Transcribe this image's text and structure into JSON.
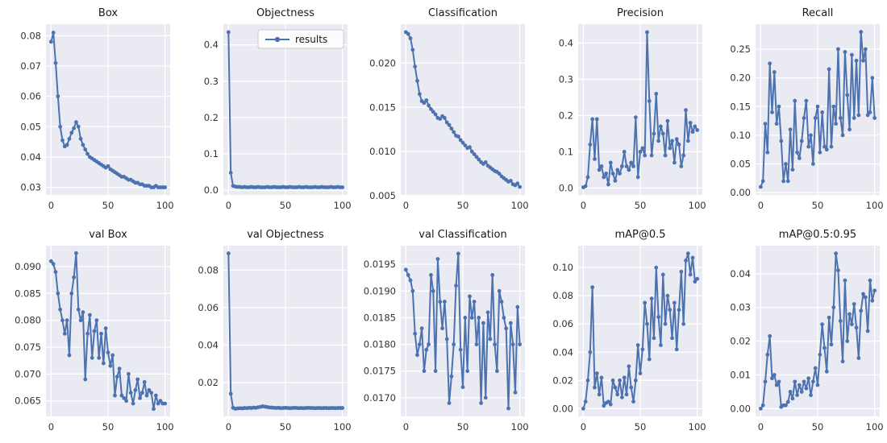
{
  "figure": {
    "name": "training-results-figure",
    "theme": {
      "figure_bg": "#ffffff",
      "panel_bg": "#eaeaf2",
      "grid_color": "#ffffff",
      "line_color": "#4c72b0",
      "text_color": "#333333",
      "legend_border": "#cccccc"
    }
  },
  "epochs": [
    0,
    2,
    4,
    6,
    8,
    10,
    12,
    14,
    16,
    18,
    20,
    22,
    24,
    26,
    28,
    30,
    32,
    34,
    36,
    38,
    40,
    42,
    44,
    46,
    48,
    50,
    52,
    54,
    56,
    58,
    60,
    62,
    64,
    66,
    68,
    70,
    72,
    74,
    76,
    78,
    80,
    82,
    84,
    86,
    88,
    90,
    92,
    94,
    96,
    98,
    100
  ],
  "chart_data": [
    {
      "id": "box",
      "type": "line",
      "title": "Box",
      "legend": null,
      "xlim": [
        -4.5,
        104.5
      ],
      "ylim": [
        0.0275,
        0.0838
      ],
      "xtick_vals": [
        0,
        50,
        100
      ],
      "xtick_labels": [
        "0",
        "50",
        "100"
      ],
      "ytick_vals": [
        0.03,
        0.04,
        0.05,
        0.06,
        0.07,
        0.08
      ],
      "ytick_labels": [
        "0.03",
        "0.04",
        "0.05",
        "0.06",
        "0.07",
        "0.08"
      ],
      "values": [
        0.078,
        0.081,
        0.071,
        0.06,
        0.05,
        0.0455,
        0.0435,
        0.044,
        0.046,
        0.048,
        0.0495,
        0.0515,
        0.05,
        0.046,
        0.044,
        0.0425,
        0.041,
        0.04,
        0.0395,
        0.039,
        0.0385,
        0.038,
        0.0375,
        0.037,
        0.0365,
        0.037,
        0.036,
        0.0355,
        0.035,
        0.0345,
        0.034,
        0.0335,
        0.0335,
        0.033,
        0.0325,
        0.0325,
        0.032,
        0.0315,
        0.0315,
        0.031,
        0.031,
        0.0305,
        0.0305,
        0.0305,
        0.03,
        0.03,
        0.0305,
        0.03,
        0.03,
        0.03,
        0.03
      ]
    },
    {
      "id": "objectness",
      "type": "line",
      "title": "Objectness",
      "legend": "results",
      "xlim": [
        -4.5,
        104.5
      ],
      "ylim": [
        -0.013,
        0.457
      ],
      "xtick_vals": [
        0,
        50,
        100
      ],
      "xtick_labels": [
        "0",
        "50",
        "100"
      ],
      "ytick_vals": [
        0.0,
        0.1,
        0.2,
        0.3,
        0.4
      ],
      "ytick_labels": [
        "0.0",
        "0.1",
        "0.2",
        "0.3",
        "0.4"
      ],
      "values": [
        0.435,
        0.048,
        0.012,
        0.01,
        0.009,
        0.009,
        0.008,
        0.009,
        0.008,
        0.008,
        0.009,
        0.008,
        0.008,
        0.009,
        0.008,
        0.008,
        0.008,
        0.009,
        0.008,
        0.008,
        0.009,
        0.008,
        0.008,
        0.008,
        0.009,
        0.008,
        0.008,
        0.009,
        0.008,
        0.008,
        0.008,
        0.009,
        0.008,
        0.008,
        0.009,
        0.008,
        0.008,
        0.008,
        0.009,
        0.008,
        0.008,
        0.009,
        0.008,
        0.008,
        0.008,
        0.009,
        0.008,
        0.008,
        0.009,
        0.008,
        0.008
      ]
    },
    {
      "id": "classification",
      "type": "line",
      "title": "Classification",
      "legend": null,
      "xlim": [
        -4.5,
        104.5
      ],
      "ylim": [
        0.0051,
        0.0244
      ],
      "xtick_vals": [
        0,
        50,
        100
      ],
      "xtick_labels": [
        "0",
        "50",
        "100"
      ],
      "ytick_vals": [
        0.005,
        0.01,
        0.015,
        0.02
      ],
      "ytick_labels": [
        "0.005",
        "0.010",
        "0.015",
        "0.020"
      ],
      "values": [
        0.0235,
        0.0233,
        0.0228,
        0.0215,
        0.0196,
        0.018,
        0.0165,
        0.0157,
        0.0155,
        0.0158,
        0.0152,
        0.0148,
        0.0145,
        0.0142,
        0.0138,
        0.0137,
        0.014,
        0.0138,
        0.0133,
        0.013,
        0.0126,
        0.0122,
        0.0118,
        0.0117,
        0.0113,
        0.011,
        0.0107,
        0.0104,
        0.0105,
        0.01,
        0.0097,
        0.0094,
        0.0091,
        0.0088,
        0.0086,
        0.0088,
        0.0084,
        0.0082,
        0.008,
        0.0078,
        0.0077,
        0.0075,
        0.0072,
        0.007,
        0.0068,
        0.0066,
        0.0067,
        0.0063,
        0.0062,
        0.0064,
        0.006
      ]
    },
    {
      "id": "precision",
      "type": "line",
      "title": "Precision",
      "legend": null,
      "xlim": [
        -4.5,
        104.5
      ],
      "ylim": [
        -0.019,
        0.452
      ],
      "xtick_vals": [
        0,
        50,
        100
      ],
      "xtick_labels": [
        "0",
        "50",
        "100"
      ],
      "ytick_vals": [
        0.0,
        0.1,
        0.2,
        0.3,
        0.4
      ],
      "ytick_labels": [
        "0.0",
        "0.1",
        "0.2",
        "0.3",
        "0.4"
      ],
      "values": [
        0.002,
        0.005,
        0.03,
        0.12,
        0.19,
        0.08,
        0.19,
        0.05,
        0.06,
        0.03,
        0.04,
        0.01,
        0.07,
        0.04,
        0.02,
        0.05,
        0.04,
        0.06,
        0.1,
        0.06,
        0.05,
        0.07,
        0.06,
        0.195,
        0.03,
        0.1,
        0.11,
        0.09,
        0.43,
        0.24,
        0.09,
        0.15,
        0.26,
        0.13,
        0.17,
        0.15,
        0.09,
        0.185,
        0.11,
        0.13,
        0.07,
        0.135,
        0.12,
        0.06,
        0.09,
        0.215,
        0.13,
        0.18,
        0.155,
        0.17,
        0.16
      ]
    },
    {
      "id": "recall",
      "type": "line",
      "title": "Recall",
      "legend": null,
      "xlim": [
        -4.5,
        104.5
      ],
      "ylim": [
        -0.004,
        0.2935
      ],
      "xtick_vals": [
        0,
        50,
        100
      ],
      "xtick_labels": [
        "0",
        "50",
        "100"
      ],
      "ytick_vals": [
        0.0,
        0.05,
        0.1,
        0.15,
        0.2,
        0.25
      ],
      "ytick_labels": [
        "0.00",
        "0.05",
        "0.10",
        "0.15",
        "0.20",
        "0.25"
      ],
      "values": [
        0.01,
        0.02,
        0.12,
        0.07,
        0.225,
        0.14,
        0.21,
        0.12,
        0.15,
        0.09,
        0.02,
        0.05,
        0.02,
        0.11,
        0.04,
        0.16,
        0.07,
        0.06,
        0.09,
        0.13,
        0.16,
        0.08,
        0.1,
        0.05,
        0.13,
        0.15,
        0.07,
        0.14,
        0.08,
        0.075,
        0.215,
        0.08,
        0.15,
        0.12,
        0.25,
        0.13,
        0.1,
        0.245,
        0.17,
        0.11,
        0.24,
        0.13,
        0.23,
        0.135,
        0.28,
        0.23,
        0.25,
        0.135,
        0.14,
        0.2,
        0.13
      ]
    },
    {
      "id": "val-box",
      "type": "line",
      "title": "val Box",
      "legend": null,
      "xlim": [
        -4.5,
        104.5
      ],
      "ylim": [
        0.0621,
        0.0939
      ],
      "xtick_vals": [
        0,
        50,
        100
      ],
      "xtick_labels": [
        "0",
        "50",
        "100"
      ],
      "ytick_vals": [
        0.065,
        0.07,
        0.075,
        0.08,
        0.085,
        0.09
      ],
      "ytick_labels": [
        "0.065",
        "0.070",
        "0.075",
        "0.080",
        "0.085",
        "0.090"
      ],
      "values": [
        0.091,
        0.0905,
        0.089,
        0.085,
        0.082,
        0.08,
        0.0775,
        0.08,
        0.0735,
        0.085,
        0.088,
        0.0925,
        0.082,
        0.08,
        0.0815,
        0.069,
        0.0775,
        0.081,
        0.073,
        0.078,
        0.08,
        0.073,
        0.0775,
        0.072,
        0.0785,
        0.074,
        0.0715,
        0.0735,
        0.066,
        0.0695,
        0.071,
        0.066,
        0.0655,
        0.065,
        0.07,
        0.0665,
        0.0645,
        0.067,
        0.069,
        0.0655,
        0.0665,
        0.0685,
        0.066,
        0.067,
        0.0665,
        0.0635,
        0.066,
        0.0645,
        0.065,
        0.0645,
        0.0645
      ]
    },
    {
      "id": "val-objectness",
      "type": "line",
      "title": "val Objectness",
      "legend": null,
      "xlim": [
        -4.5,
        104.5
      ],
      "ylim": [
        0.0019,
        0.0931
      ],
      "xtick_vals": [
        0,
        50,
        100
      ],
      "xtick_labels": [
        "0",
        "50",
        "100"
      ],
      "ytick_vals": [
        0.02,
        0.04,
        0.06,
        0.08
      ],
      "ytick_labels": [
        "0.02",
        "0.04",
        "0.06",
        "0.08"
      ],
      "values": [
        0.089,
        0.014,
        0.0065,
        0.006,
        0.0062,
        0.0063,
        0.0062,
        0.0064,
        0.0063,
        0.0065,
        0.0064,
        0.0066,
        0.0065,
        0.0068,
        0.007,
        0.0073,
        0.0071,
        0.0069,
        0.0067,
        0.0066,
        0.0065,
        0.0064,
        0.0065,
        0.0063,
        0.0064,
        0.0065,
        0.0064,
        0.0063,
        0.0064,
        0.0065,
        0.0064,
        0.0063,
        0.0064,
        0.0063,
        0.0064,
        0.0065,
        0.0064,
        0.0064,
        0.0063,
        0.0064,
        0.0064,
        0.0063,
        0.0064,
        0.0064,
        0.0063,
        0.0064,
        0.0064,
        0.0063,
        0.0064,
        0.0064,
        0.0064
      ]
    },
    {
      "id": "val-classification",
      "type": "line",
      "title": "val Classification",
      "legend": null,
      "xlim": [
        -4.5,
        104.5
      ],
      "ylim": [
        0.01665,
        0.01985
      ],
      "xtick_vals": [
        0,
        50,
        100
      ],
      "xtick_labels": [
        "0",
        "50",
        "100"
      ],
      "ytick_vals": [
        0.017,
        0.0175,
        0.018,
        0.0185,
        0.019,
        0.0195
      ],
      "ytick_labels": [
        "0.0170",
        "0.0175",
        "0.0180",
        "0.0185",
        "0.0190",
        "0.0195"
      ],
      "values": [
        0.0194,
        0.0193,
        0.0192,
        0.019,
        0.0182,
        0.0178,
        0.018,
        0.0183,
        0.0175,
        0.0179,
        0.018,
        0.0193,
        0.019,
        0.0175,
        0.0196,
        0.0188,
        0.0183,
        0.0188,
        0.0181,
        0.0169,
        0.0174,
        0.018,
        0.0191,
        0.0197,
        0.0179,
        0.0172,
        0.0185,
        0.0175,
        0.0189,
        0.0185,
        0.0188,
        0.018,
        0.0185,
        0.0169,
        0.0184,
        0.017,
        0.0186,
        0.0181,
        0.0193,
        0.018,
        0.0175,
        0.019,
        0.0188,
        0.0185,
        0.0183,
        0.0168,
        0.0184,
        0.018,
        0.0171,
        0.0187,
        0.018
      ]
    },
    {
      "id": "map-0-5",
      "type": "line",
      "title": "mAP@0.5",
      "legend": null,
      "xlim": [
        -4.5,
        104.5
      ],
      "ylim": [
        -0.0055,
        0.1155
      ],
      "xtick_vals": [
        0,
        50,
        100
      ],
      "xtick_labels": [
        "0",
        "50",
        "100"
      ],
      "ytick_vals": [
        0.0,
        0.02,
        0.04,
        0.06,
        0.08,
        0.1
      ],
      "ytick_labels": [
        "0.00",
        "0.02",
        "0.04",
        "0.06",
        "0.08",
        "0.10"
      ],
      "values": [
        0.0,
        0.005,
        0.02,
        0.04,
        0.086,
        0.015,
        0.025,
        0.01,
        0.022,
        0.002,
        0.004,
        0.005,
        0.003,
        0.02,
        0.015,
        0.01,
        0.02,
        0.008,
        0.022,
        0.01,
        0.03,
        0.015,
        0.005,
        0.02,
        0.045,
        0.025,
        0.042,
        0.075,
        0.06,
        0.035,
        0.078,
        0.05,
        0.1,
        0.065,
        0.045,
        0.095,
        0.06,
        0.08,
        0.07,
        0.05,
        0.075,
        0.042,
        0.07,
        0.097,
        0.06,
        0.105,
        0.11,
        0.095,
        0.107,
        0.09,
        0.092
      ]
    },
    {
      "id": "map-0-5-0-95",
      "type": "line",
      "title": "mAP@0.5:0.95",
      "legend": null,
      "xlim": [
        -4.5,
        104.5
      ],
      "ylim": [
        -0.0023,
        0.0483
      ],
      "xtick_vals": [
        0,
        50,
        100
      ],
      "xtick_labels": [
        "0",
        "50",
        "100"
      ],
      "ytick_vals": [
        0.0,
        0.01,
        0.02,
        0.03,
        0.04
      ],
      "ytick_labels": [
        "0.00",
        "0.01",
        "0.02",
        "0.03",
        "0.04"
      ],
      "values": [
        0.0,
        0.001,
        0.008,
        0.016,
        0.0215,
        0.009,
        0.01,
        0.007,
        0.008,
        0.0005,
        0.001,
        0.001,
        0.002,
        0.005,
        0.003,
        0.008,
        0.004,
        0.007,
        0.005,
        0.008,
        0.006,
        0.009,
        0.004,
        0.008,
        0.012,
        0.007,
        0.016,
        0.025,
        0.018,
        0.011,
        0.027,
        0.019,
        0.03,
        0.046,
        0.041,
        0.026,
        0.014,
        0.038,
        0.02,
        0.028,
        0.025,
        0.031,
        0.024,
        0.015,
        0.029,
        0.034,
        0.033,
        0.023,
        0.038,
        0.032,
        0.035
      ]
    }
  ]
}
